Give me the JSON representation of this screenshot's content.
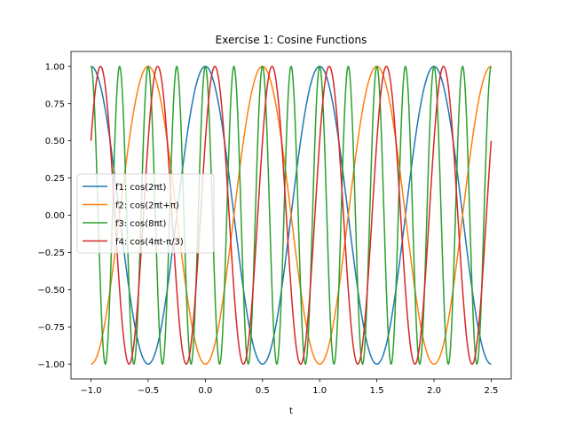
{
  "chart_data": {
    "type": "line",
    "title": "Exercise 1: Cosine Functions",
    "xlabel": "t",
    "ylabel": "",
    "xlim": [
      -1.175,
      2.675
    ],
    "ylim": [
      -1.1,
      1.1
    ],
    "x_range": [
      -1.0,
      2.5
    ],
    "xticks": [
      -1.0,
      -0.5,
      0.0,
      0.5,
      1.0,
      1.5,
      2.0,
      2.5
    ],
    "xtick_labels": [
      "−1.0",
      "−0.5",
      "0.0",
      "0.5",
      "1.0",
      "1.5",
      "2.0",
      "2.5"
    ],
    "yticks": [
      -1.0,
      -0.75,
      -0.5,
      -0.25,
      0.0,
      0.25,
      0.5,
      0.75,
      1.0
    ],
    "ytick_labels": [
      "−1.00",
      "−0.75",
      "−0.50",
      "−0.25",
      "0.00",
      "0.25",
      "0.50",
      "0.75",
      "1.00"
    ],
    "legend_position": "center-left",
    "grid": false,
    "series": [
      {
        "name": "f1: cos(2πt)",
        "color": "#1f77b4",
        "amplitude": 1,
        "omega_over_pi": 2,
        "phase_over_pi": 0
      },
      {
        "name": "f2: cos(2πt+π)",
        "color": "#ff7f0e",
        "amplitude": 1,
        "omega_over_pi": 2,
        "phase_over_pi": 1
      },
      {
        "name": "f3: cos(8πt)",
        "color": "#2ca02c",
        "amplitude": 1,
        "omega_over_pi": 8,
        "phase_over_pi": 0
      },
      {
        "name": "f4: cos(4πt-π/3)",
        "color": "#d62728",
        "amplitude": 1,
        "omega_over_pi": 4,
        "phase_over_pi": -0.3333333333
      }
    ]
  }
}
